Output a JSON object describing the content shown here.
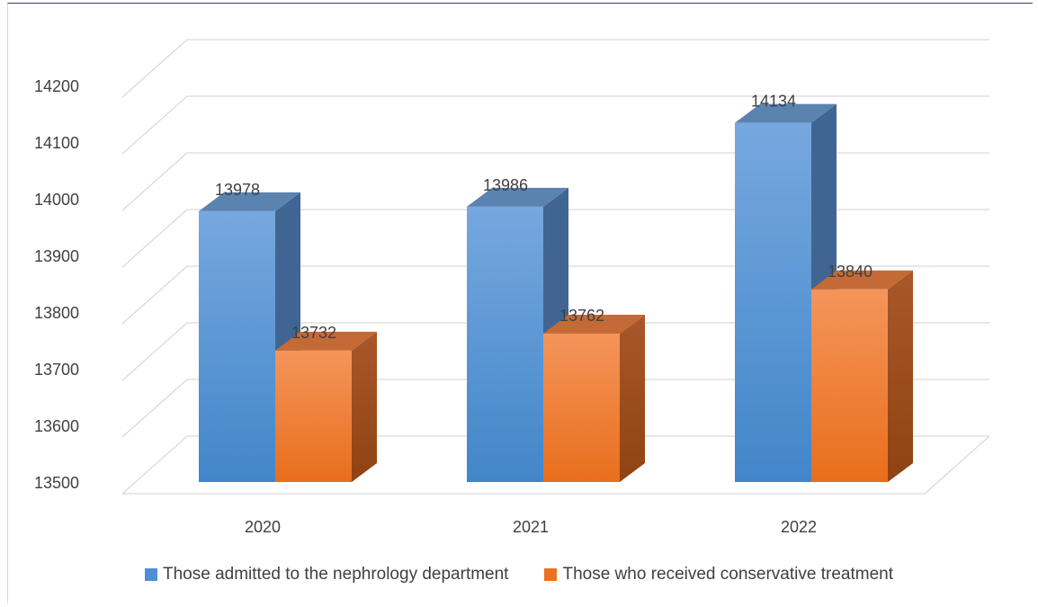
{
  "chart_data": {
    "type": "bar",
    "bar_style": "3d-clustered-column",
    "categories": [
      "2020",
      "2021",
      "2022"
    ],
    "series": [
      {
        "name": "Those admitted to the nephrology department",
        "values": [
          13978,
          13986,
          14134
        ],
        "color": "#5b9bd5"
      },
      {
        "name": "Those who received conservative treatment",
        "values": [
          13732,
          13762,
          13840
        ],
        "color": "#ed7d31"
      }
    ],
    "ylim": [
      13500,
      14200
    ],
    "yticks": [
      13500,
      13600,
      13700,
      13800,
      13900,
      14000,
      14100,
      14200
    ],
    "grid": true,
    "legend_position": "bottom",
    "title": "",
    "xlabel": "",
    "ylabel": ""
  }
}
